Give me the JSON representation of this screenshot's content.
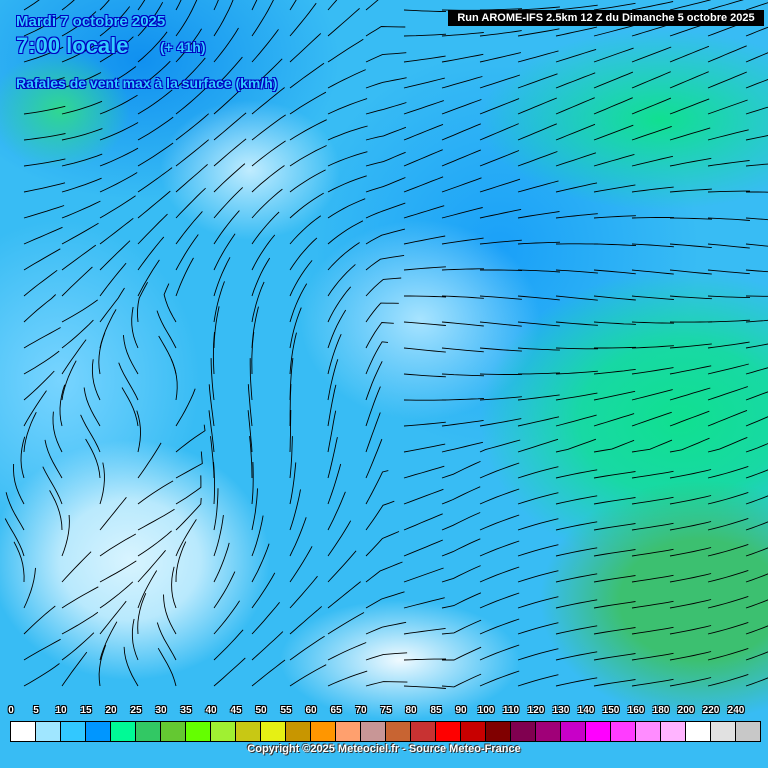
{
  "header": {
    "date": "Mardi 7 octobre 2025",
    "time": "7:00 locale",
    "lead": "(+ 41h)",
    "parameter": "Rafales de vent max à la surface (km/h)",
    "run": "Run AROME-IFS 2.5km 12 Z du Dimanche 5 octobre 2025"
  },
  "legend": {
    "labels": [
      "0",
      "5",
      "10",
      "15",
      "20",
      "25",
      "30",
      "35",
      "40",
      "45",
      "50",
      "55",
      "60",
      "65",
      "70",
      "75",
      "80",
      "85",
      "90",
      "100",
      "110",
      "120",
      "130",
      "140",
      "150",
      "160",
      "180",
      "200",
      "220",
      "240"
    ],
    "colors": [
      "#ffffff",
      "#a0e6ff",
      "#32c8ff",
      "#0096ff",
      "#00fa96",
      "#32c864",
      "#64c832",
      "#64ff00",
      "#a0f032",
      "#c8c814",
      "#e6f014",
      "#c89600",
      "#ff9600",
      "#ffa06e",
      "#c89696",
      "#c86432",
      "#c83232",
      "#ff0000",
      "#c80000",
      "#800000",
      "#800050",
      "#a00078",
      "#c800c8",
      "#ff00ff",
      "#ff3cff",
      "#ff8cff",
      "#ffb4ff",
      "#ffffff",
      "#e1e1e1",
      "#c8c8c8"
    ]
  },
  "copyright": "Copyright ©2025 Meteociel.fr - Source Meteo-France"
}
